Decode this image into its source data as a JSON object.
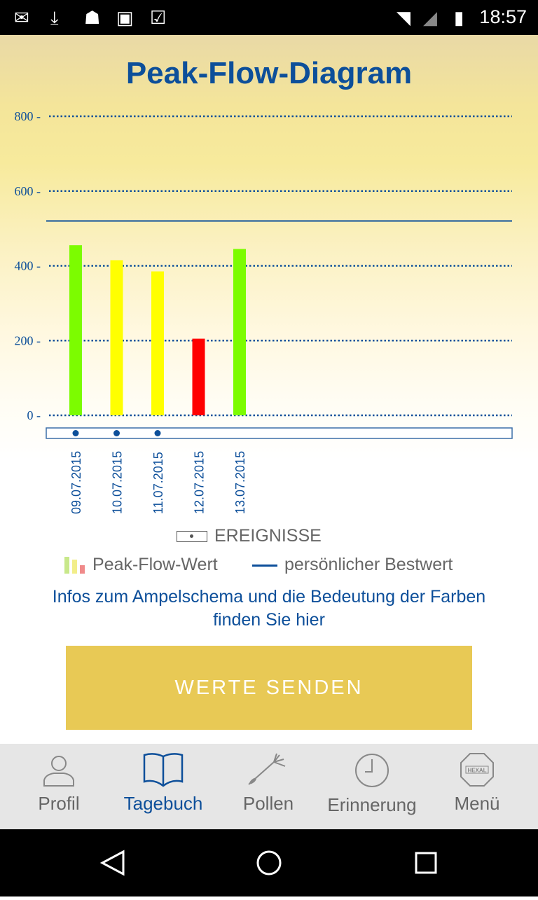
{
  "status_bar": {
    "time": "18:57",
    "icons": [
      "mail-icon",
      "download-icon",
      "android-icon",
      "play-store-icon",
      "clipboard-check-icon",
      "wifi-icon",
      "signal-icon",
      "battery-charging-icon"
    ]
  },
  "page": {
    "title": "Peak-Flow-Diagram"
  },
  "chart_data": {
    "type": "bar",
    "categories": [
      "09.07.2015",
      "10.07.2015",
      "11.07.2015",
      "12.07.2015",
      "13.07.2015"
    ],
    "values": [
      455,
      415,
      385,
      205,
      445
    ],
    "bar_colors": [
      "#7cfc00",
      "#ffff00",
      "#ffff00",
      "#ff0000",
      "#7cfc00"
    ],
    "yticks": [
      "0 -",
      "200 -",
      "400 -",
      "600 -",
      "800 -"
    ],
    "ytick_values": [
      0,
      200,
      400,
      600,
      800
    ],
    "ylim": [
      0,
      800
    ],
    "grid": true,
    "personal_best": 520,
    "events": [
      true,
      true,
      true,
      false,
      false
    ]
  },
  "legend": {
    "events": "EREIGNISSE",
    "peak_flow": "Peak-Flow-Wert",
    "best": "persönlicher Bestwert"
  },
  "info_link": "Infos zum Ampelschema und die Bedeutung der Farben finden Sie hier",
  "send_button": "WERTE SENDEN",
  "nav": {
    "items": [
      {
        "label": "Profil",
        "icon": "person-icon"
      },
      {
        "label": "Tagebuch",
        "icon": "book-icon"
      },
      {
        "label": "Pollen",
        "icon": "pollen-icon"
      },
      {
        "label": "Erinnerung",
        "icon": "clock-icon"
      },
      {
        "label": "Menü",
        "icon": "hexal-icon"
      }
    ],
    "active": 1
  },
  "colors": {
    "accent": "#0d4f9a",
    "button": "#e8c955",
    "green": "#7cfc00",
    "yellow": "#ffff00",
    "red": "#ff0000"
  }
}
